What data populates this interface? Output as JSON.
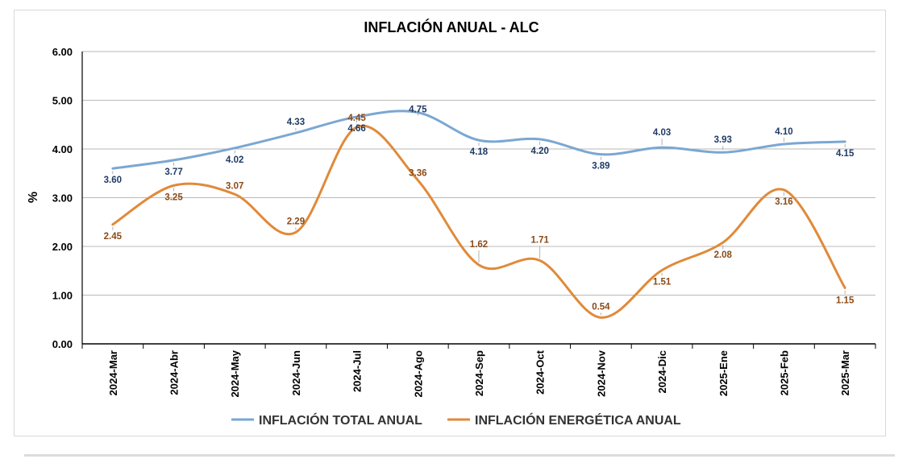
{
  "chart_data": {
    "type": "line",
    "title": "INFLACIÓN ANUAL - ALC",
    "ylabel": "%",
    "xlabel": "",
    "ylim": [
      0,
      6
    ],
    "yticks": [
      "0.00",
      "1.00",
      "2.00",
      "3.00",
      "4.00",
      "5.00",
      "6.00"
    ],
    "grid": true,
    "legend_position": "bottom",
    "categories": [
      "2024-Mar",
      "2024-Abr",
      "2024-May",
      "2024-Jun",
      "2024-Jul",
      "2024-Ago",
      "2024-Sep",
      "2024-Oct",
      "2024-Nov",
      "2024-Dic",
      "2025-Ene",
      "2025-Feb",
      "2025-Mar"
    ],
    "series": [
      {
        "name": "INFLACIÓN TOTAL ANUAL",
        "color": "#7ba7d2",
        "label_color": "#1f3b66",
        "values": [
          3.6,
          3.77,
          4.02,
          4.33,
          4.66,
          4.75,
          4.18,
          4.2,
          3.89,
          4.03,
          3.93,
          4.1,
          4.15
        ],
        "labels": [
          "3.60",
          "3.77",
          "4.02",
          "4.33",
          "4.66",
          "4.75",
          "4.18",
          "4.20",
          "3.89",
          "4.03",
          "3.93",
          "4.10",
          "4.15"
        ]
      },
      {
        "name": "INFLACIÓN ENERGÉTICA ANUAL",
        "color": "#e08a3a",
        "label_color": "#8a4a16",
        "values": [
          2.45,
          3.25,
          3.07,
          2.29,
          4.45,
          3.36,
          1.62,
          1.71,
          0.54,
          1.51,
          2.08,
          3.16,
          1.15
        ],
        "labels": [
          "2.45",
          "3.25",
          "3.07",
          "2.29",
          "4.45",
          "3.36",
          "1.62",
          "1.71",
          "0.54",
          "1.51",
          "2.08",
          "3.16",
          "1.15"
        ]
      }
    ]
  }
}
